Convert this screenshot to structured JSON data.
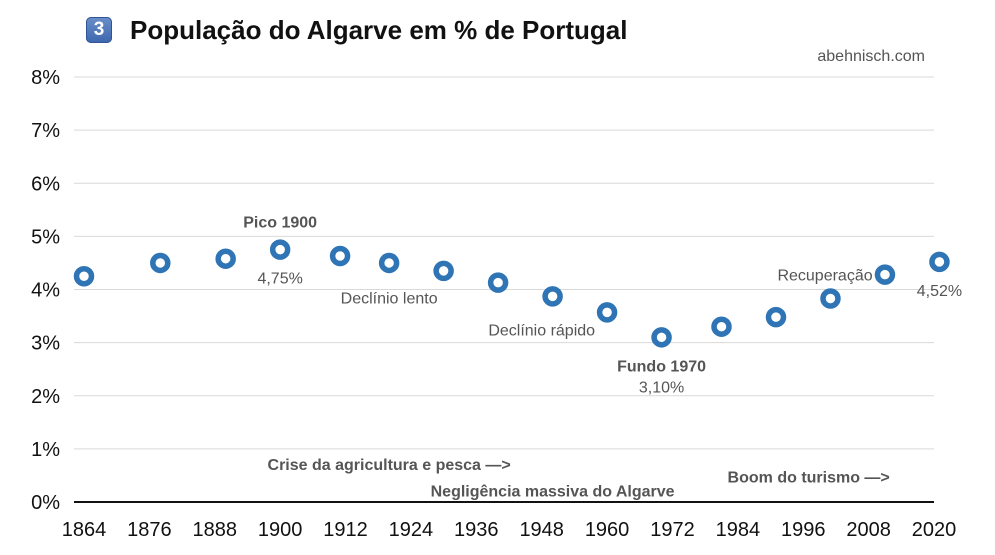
{
  "header": {
    "badge": "3",
    "title": "População do Algarve em % de Portugal",
    "source": "abehnisch.com"
  },
  "colors": {
    "marker": "#2f74b5",
    "grid": "#d9d9d9",
    "axis": "#111111",
    "annotation": "#555555"
  },
  "chart_data": {
    "type": "scatter",
    "title": "População do Algarve em % de Portugal",
    "xlabel": "",
    "ylabel": "",
    "xlim": [
      1864,
      2020
    ],
    "ylim": [
      0,
      8
    ],
    "grid": true,
    "x_ticks": [
      "1864",
      "1876",
      "1888",
      "1900",
      "1912",
      "1924",
      "1936",
      "1948",
      "1960",
      "1972",
      "1984",
      "1996",
      "2008",
      "2020"
    ],
    "y_ticks": [
      "0%",
      "1%",
      "2%",
      "3%",
      "4%",
      "5%",
      "6%",
      "7%",
      "8%"
    ],
    "series": [
      {
        "x": [
          1864,
          1878,
          1890,
          1900,
          1911,
          1920,
          1930,
          1940,
          1950,
          1960,
          1970,
          1981,
          1991,
          2001,
          2011,
          2021
        ],
        "y": [
          4.25,
          4.5,
          4.58,
          4.75,
          4.63,
          4.5,
          4.35,
          4.13,
          3.87,
          3.57,
          3.1,
          3.3,
          3.48,
          3.83,
          4.28,
          4.52
        ]
      }
    ],
    "annotations": [
      {
        "text": "Pico 1900",
        "x": 1900,
        "y": 4.75,
        "bold": true,
        "pos": "above"
      },
      {
        "text": "4,75%",
        "x": 1900,
        "y": 4.75,
        "bold": false,
        "pos": "below"
      },
      {
        "text": "Declínio lento",
        "x": 1920,
        "y": 3.85,
        "bold": false,
        "pos": "at"
      },
      {
        "text": "Declínio rápido",
        "x": 1948,
        "y": 3.25,
        "bold": false,
        "pos": "at"
      },
      {
        "text": "Fundo 1970",
        "x": 1970,
        "y": 3.1,
        "bold": true,
        "pos": "below"
      },
      {
        "text": "3,10%",
        "x": 1970,
        "y": 3.1,
        "bold": false,
        "pos": "below2"
      },
      {
        "text": "Recuperação",
        "x": 2000,
        "y": 4.28,
        "bold": false,
        "pos": "at"
      },
      {
        "text": "4,52%",
        "x": 2021,
        "y": 4.52,
        "bold": false,
        "pos": "below"
      },
      {
        "text": "Crise da agricultura e pesca —>",
        "x": 1920,
        "y": 0.72,
        "bold": true,
        "pos": "at"
      },
      {
        "text": "Negligência massiva do Algarve",
        "x": 1950,
        "y": 0.22,
        "bold": true,
        "pos": "at"
      },
      {
        "text": "Boom do turismo —>",
        "x": 1997,
        "y": 0.48,
        "bold": true,
        "pos": "at"
      }
    ]
  }
}
